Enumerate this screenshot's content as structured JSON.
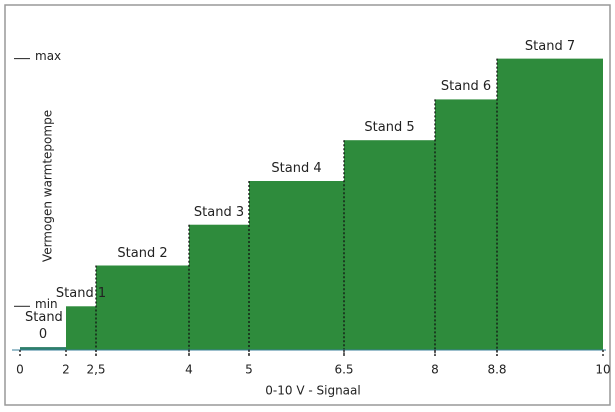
{
  "chart_data": {
    "type": "step",
    "y_axis_label": "Vermogen warmtepompe",
    "x_axis_label": "0-10 V - Signaal",
    "categories": [
      "Stand 0",
      "Stand 1",
      "Stand 2",
      "Stand 3",
      "Stand 4",
      "Stand 5",
      "Stand 6",
      "Stand 7"
    ],
    "bins": [
      0,
      2,
      2.5,
      4,
      5,
      6.5,
      8,
      8.8,
      10
    ],
    "values": [
      1,
      15,
      29,
      43,
      58,
      72,
      86,
      100
    ],
    "color": "#2e8b3c",
    "xticks": [
      0,
      2,
      {
        "value": 2.5,
        "label": "2,5"
      },
      4,
      5,
      6.5,
      8,
      8.8,
      10
    ],
    "ylim": [
      0,
      116
    ],
    "yticks": [
      {
        "value": 15,
        "label": "min"
      },
      {
        "value": 100,
        "label": "max"
      }
    ]
  }
}
